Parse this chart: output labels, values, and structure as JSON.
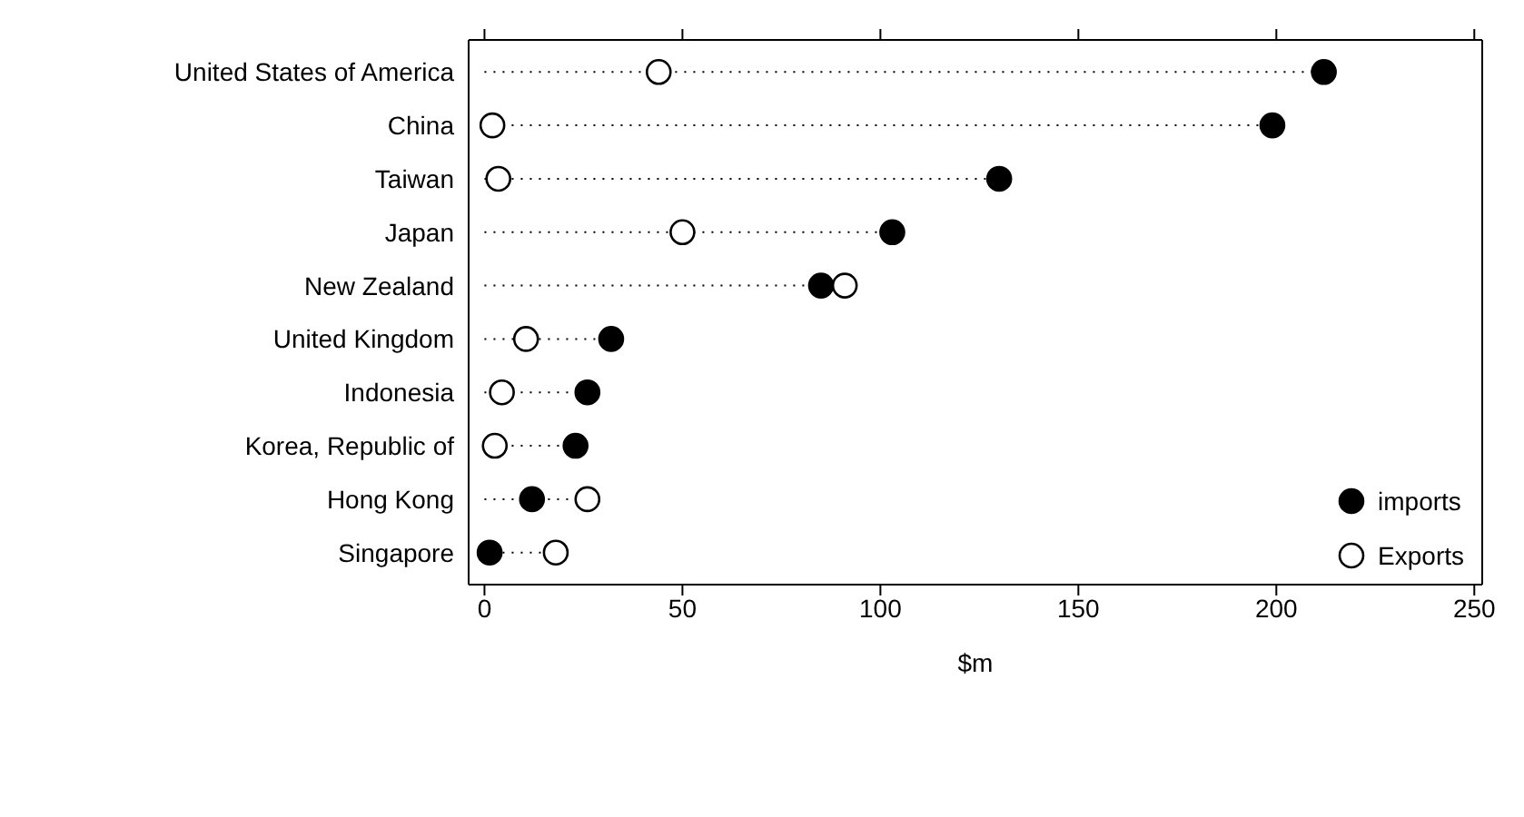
{
  "chart_data": {
    "type": "lollipop",
    "xlabel": "$m",
    "categories": [
      "United States of America",
      "China",
      "Taiwan",
      "Japan",
      "New Zealand",
      "United Kingdom",
      "Indonesia",
      "Korea, Republic of",
      "Hong Kong",
      "Singapore"
    ],
    "series": [
      {
        "name": "imports",
        "color": "#000000",
        "values": [
          212,
          199,
          130,
          103,
          85,
          32,
          26,
          23,
          12,
          1.3
        ]
      },
      {
        "name": "Exports",
        "color": "#000000",
        "values": [
          44,
          2,
          3.5,
          50,
          91,
          10.5,
          4.4,
          2.6,
          26,
          18
        ]
      }
    ],
    "xlim": [
      -4,
      252
    ],
    "xticks": [
      0,
      50,
      100,
      150,
      200,
      250
    ],
    "orientation": "horizontal",
    "marker": "circle",
    "line_style": "dotted",
    "legend": "bottom right"
  }
}
